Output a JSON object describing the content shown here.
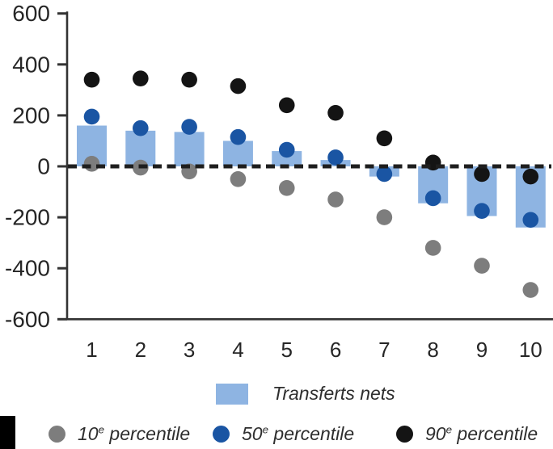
{
  "chart_data": {
    "type": "bar",
    "note_type": "combo bar + scatter (dot) chart, horizontal dashed reference line at 0",
    "categories": [
      "1",
      "2",
      "3",
      "4",
      "5",
      "6",
      "7",
      "8",
      "9",
      "10"
    ],
    "bar_series": {
      "name": "Transferts nets",
      "values": [
        160,
        140,
        135,
        100,
        60,
        25,
        -40,
        -145,
        -195,
        -240
      ],
      "color": "#8EB4E2"
    },
    "dot_series": [
      {
        "name": "10e percentile",
        "slug": "p10",
        "values": [
          10,
          -5,
          -20,
          -50,
          -85,
          -130,
          -200,
          -320,
          -390,
          -485
        ],
        "color": "#7D7D7D"
      },
      {
        "name": "50e percentile",
        "slug": "p50",
        "values": [
          195,
          150,
          155,
          115,
          65,
          35,
          -30,
          -125,
          -175,
          -210
        ],
        "color": "#1A55A3"
      },
      {
        "name": "90e percentile",
        "slug": "p90",
        "values": [
          340,
          345,
          340,
          315,
          240,
          210,
          110,
          15,
          -30,
          -40
        ],
        "color": "#141414"
      }
    ],
    "title": "",
    "xlabel": "",
    "ylabel": "",
    "ylim": [
      -600,
      600
    ],
    "yticks": [
      "600",
      "400",
      "200",
      "0",
      "-200",
      "-400",
      "-600"
    ],
    "ytick_values": [
      600,
      400,
      200,
      0,
      -200,
      -400,
      -600
    ],
    "grid": "off",
    "zero_line": "dashed black",
    "legend_position": "bottom",
    "axis_color": "#333333",
    "text_color": "#262626",
    "zero_line_color": "#1e1e1e"
  },
  "legend": {
    "bars": {
      "label": "Transferts nets",
      "color": "#8EB4E2"
    },
    "dots": [
      {
        "num": "10",
        "sup": "e",
        "rest": " percentile",
        "color": "#7D7D7D"
      },
      {
        "num": "50",
        "sup": "e",
        "rest": " percentile",
        "color": "#1A55A3"
      },
      {
        "num": "90",
        "sup": "e",
        "rest": " percentile",
        "color": "#141414"
      }
    ]
  }
}
